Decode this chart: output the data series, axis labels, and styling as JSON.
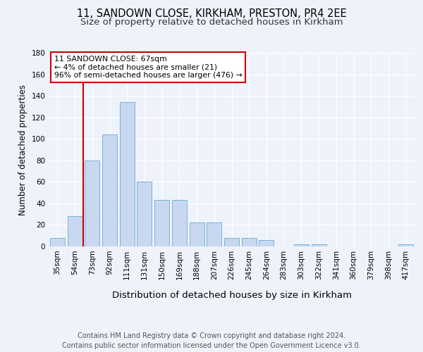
{
  "title1": "11, SANDOWN CLOSE, KIRKHAM, PRESTON, PR4 2EE",
  "title2": "Size of property relative to detached houses in Kirkham",
  "xlabel": "Distribution of detached houses by size in Kirkham",
  "ylabel": "Number of detached properties",
  "categories": [
    "35sqm",
    "54sqm",
    "73sqm",
    "92sqm",
    "111sqm",
    "131sqm",
    "150sqm",
    "169sqm",
    "188sqm",
    "207sqm",
    "226sqm",
    "245sqm",
    "264sqm",
    "283sqm",
    "303sqm",
    "322sqm",
    "341sqm",
    "360sqm",
    "379sqm",
    "398sqm",
    "417sqm"
  ],
  "values": [
    8,
    28,
    80,
    104,
    134,
    60,
    43,
    43,
    22,
    22,
    8,
    8,
    6,
    0,
    2,
    2,
    0,
    0,
    0,
    0,
    2
  ],
  "bar_color": "#c8d8f0",
  "bar_edge_color": "#6aaad4",
  "bar_width": 0.85,
  "ylim": [
    0,
    180
  ],
  "yticks": [
    0,
    20,
    40,
    60,
    80,
    100,
    120,
    140,
    160,
    180
  ],
  "red_line_x": 1.5,
  "annotation_title": "11 SANDOWN CLOSE: 67sqm",
  "annotation_line1": "← 4% of detached houses are smaller (21)",
  "annotation_line2": "96% of semi-detached houses are larger (476) →",
  "annotation_box_color": "#ffffff",
  "annotation_box_edge": "#cc0000",
  "footer1": "Contains HM Land Registry data © Crown copyright and database right 2024.",
  "footer2": "Contains public sector information licensed under the Open Government Licence v3.0.",
  "bg_color": "#eef3fb",
  "plot_bg_color": "#eef3fb",
  "grid_color": "#ffffff",
  "title1_fontsize": 10.5,
  "title2_fontsize": 9.5,
  "xlabel_fontsize": 9.5,
  "ylabel_fontsize": 8.5,
  "tick_fontsize": 7.5,
  "ann_fontsize": 7.8,
  "footer_fontsize": 7.0
}
